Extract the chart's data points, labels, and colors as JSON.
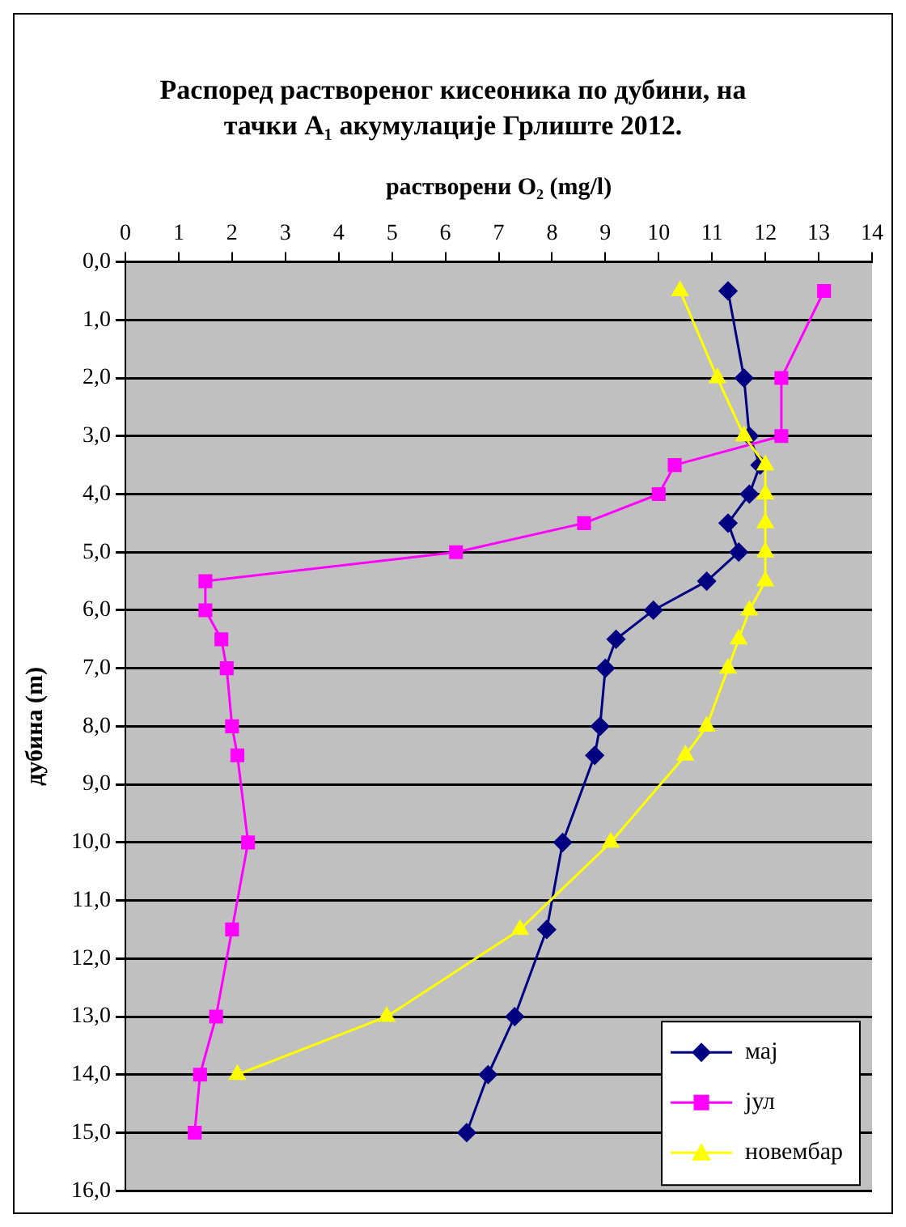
{
  "chart_data": {
    "type": "line",
    "title": "Распоред раствореног кисеоника по дубини, на тачки A₁ акумулације Грлиште 2012.",
    "xlabel": "растворени O₂ (mg/l)",
    "ylabel": "дубина (m)",
    "xlim": [
      0,
      14
    ],
    "xticks": [
      0,
      1,
      2,
      3,
      4,
      5,
      6,
      7,
      8,
      9,
      10,
      11,
      12,
      13,
      14
    ],
    "ylim": [
      16,
      0
    ],
    "yticks": [
      {
        "value": 0,
        "label": "0,0"
      },
      {
        "value": 1,
        "label": "1,0"
      },
      {
        "value": 2,
        "label": "2,0"
      },
      {
        "value": 3,
        "label": "3,0"
      },
      {
        "value": 4,
        "label": "4,0"
      },
      {
        "value": 5,
        "label": "5,0"
      },
      {
        "value": 6,
        "label": "6,0"
      },
      {
        "value": 7,
        "label": "7,0"
      },
      {
        "value": 8,
        "label": "8,0"
      },
      {
        "value": 9,
        "label": "9,0"
      },
      {
        "value": 10,
        "label": "10,0"
      },
      {
        "value": 11,
        "label": "11,0"
      },
      {
        "value": 12,
        "label": "12,0"
      },
      {
        "value": 13,
        "label": "13,0"
      },
      {
        "value": 14,
        "label": "14,0"
      },
      {
        "value": 15,
        "label": "15,0"
      },
      {
        "value": 16,
        "label": "16,0"
      }
    ],
    "grid": "y",
    "legend": "bottom right",
    "line_style": "solid",
    "series": [
      {
        "name": "мај",
        "color": "#000080",
        "marker": "diamond",
        "x": [
          11.3,
          11.6,
          11.7,
          11.9,
          11.7,
          11.3,
          11.5,
          10.9,
          9.9,
          9.2,
          9.0,
          8.9,
          8.8,
          8.2,
          7.9,
          7.3,
          6.8,
          6.4
        ],
        "values": [
          0.5,
          2,
          3,
          3.5,
          4,
          4.5,
          5,
          5.5,
          6,
          6.5,
          7,
          8,
          8.5,
          10,
          11.5,
          13,
          14,
          15
        ]
      },
      {
        "name": "јул",
        "color": "#ff00ff",
        "marker": "square",
        "x": [
          13.1,
          12.3,
          12.3,
          10.3,
          10.0,
          8.6,
          6.2,
          1.5,
          1.5,
          1.8,
          1.9,
          2.0,
          2.1,
          2.3,
          2.0,
          1.7,
          1.4,
          1.3
        ],
        "values": [
          0.5,
          2,
          3,
          3.5,
          4,
          4.5,
          5,
          5.5,
          6,
          6.5,
          7,
          8,
          8.5,
          10,
          11.5,
          13,
          14,
          15
        ]
      },
      {
        "name": "новембар",
        "color": "#ffff00",
        "marker": "triangle",
        "x": [
          10.4,
          11.1,
          11.6,
          12.0,
          12.0,
          12.0,
          12.0,
          12.0,
          11.7,
          11.5,
          11.3,
          10.9,
          10.5,
          9.1,
          7.4,
          4.9,
          2.1
        ],
        "values": [
          0.5,
          2,
          3,
          3.5,
          4,
          4.5,
          5,
          5.5,
          6,
          6.5,
          7,
          8,
          8.5,
          10,
          11.5,
          13,
          14
        ]
      }
    ]
  }
}
